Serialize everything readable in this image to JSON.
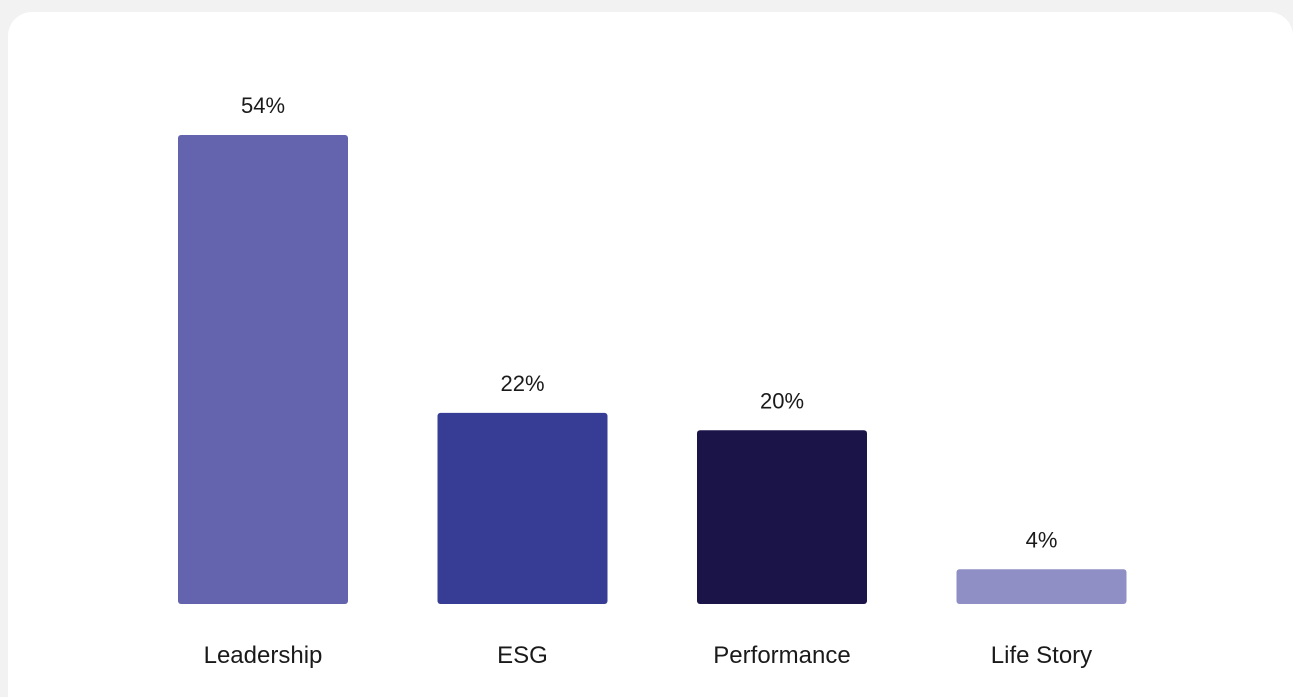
{
  "chart_data": {
    "type": "bar",
    "title": "",
    "xlabel": "",
    "ylabel": "",
    "categories": [
      "Leadership",
      "ESG",
      "Performance",
      "Life Story"
    ],
    "values": [
      54,
      22,
      20,
      4
    ],
    "value_labels": [
      "54%",
      "22%",
      "20%",
      "4%"
    ],
    "colors": [
      "#6364ad",
      "#373d95",
      "#1b1448",
      "#8f8fc5"
    ],
    "ylim": [
      0,
      54
    ],
    "grid": false,
    "legend": "none"
  }
}
